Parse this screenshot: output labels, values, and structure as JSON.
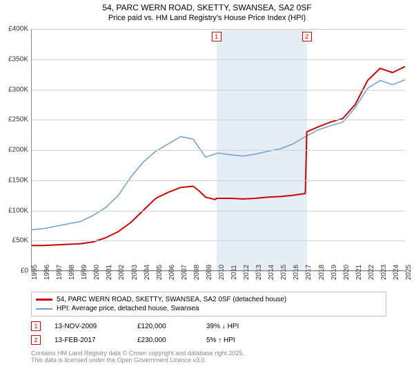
{
  "title_line1": "54, PARC WERN ROAD, SKETTY, SWANSEA, SA2 0SF",
  "title_line2": "Price paid vs. HM Land Registry's House Price Index (HPI)",
  "chart": {
    "type": "line",
    "background_color": "#ffffff",
    "grid_color": "#d0d0d0",
    "shade_color": "#e5eef7",
    "ylim": [
      0,
      400
    ],
    "ytick_step": 50,
    "y_labels": [
      "£0",
      "£50K",
      "£100K",
      "£150K",
      "£200K",
      "£250K",
      "£300K",
      "£350K",
      "£400K"
    ],
    "xlim": [
      1995,
      2025
    ],
    "x_labels": [
      "1995",
      "1996",
      "1997",
      "1998",
      "1999",
      "2000",
      "2001",
      "2002",
      "2003",
      "2004",
      "2005",
      "2006",
      "2007",
      "2008",
      "2009",
      "2010",
      "2011",
      "2012",
      "2013",
      "2014",
      "2015",
      "2016",
      "2017",
      "2018",
      "2019",
      "2020",
      "2021",
      "2022",
      "2023",
      "2024",
      "2025"
    ],
    "label_fontsize": 10,
    "shade_range": [
      2009.87,
      2017.12
    ],
    "series": [
      {
        "name": "red",
        "color": "#cc0000",
        "width": 2,
        "points": [
          [
            1995,
            42
          ],
          [
            1996,
            42
          ],
          [
            1997,
            43
          ],
          [
            1998,
            44
          ],
          [
            1999,
            45
          ],
          [
            2000,
            48
          ],
          [
            2001,
            55
          ],
          [
            2002,
            65
          ],
          [
            2003,
            80
          ],
          [
            2004,
            100
          ],
          [
            2005,
            120
          ],
          [
            2006,
            130
          ],
          [
            2007,
            138
          ],
          [
            2008,
            140
          ],
          [
            2008.5,
            132
          ],
          [
            2009,
            122
          ],
          [
            2009.8,
            118
          ],
          [
            2009.87,
            120
          ],
          [
            2010,
            120
          ],
          [
            2011,
            120
          ],
          [
            2012,
            119
          ],
          [
            2013,
            120
          ],
          [
            2014,
            122
          ],
          [
            2015,
            123
          ],
          [
            2016,
            125
          ],
          [
            2017,
            128
          ],
          [
            2017.12,
            230
          ],
          [
            2018,
            238
          ],
          [
            2019,
            246
          ],
          [
            2020,
            252
          ],
          [
            2021,
            275
          ],
          [
            2022,
            315
          ],
          [
            2023,
            335
          ],
          [
            2024,
            328
          ],
          [
            2025,
            338
          ]
        ]
      },
      {
        "name": "blue",
        "color": "#6699cc",
        "width": 1.4,
        "points": [
          [
            1995,
            68
          ],
          [
            1996,
            70
          ],
          [
            1997,
            74
          ],
          [
            1998,
            78
          ],
          [
            1999,
            82
          ],
          [
            2000,
            92
          ],
          [
            2001,
            105
          ],
          [
            2002,
            125
          ],
          [
            2003,
            155
          ],
          [
            2004,
            180
          ],
          [
            2005,
            198
          ],
          [
            2006,
            210
          ],
          [
            2007,
            222
          ],
          [
            2008,
            218
          ],
          [
            2009,
            188
          ],
          [
            2010,
            195
          ],
          [
            2011,
            192
          ],
          [
            2012,
            190
          ],
          [
            2013,
            193
          ],
          [
            2014,
            198
          ],
          [
            2015,
            202
          ],
          [
            2016,
            210
          ],
          [
            2017,
            222
          ],
          [
            2018,
            233
          ],
          [
            2019,
            240
          ],
          [
            2020,
            246
          ],
          [
            2021,
            270
          ],
          [
            2022,
            302
          ],
          [
            2023,
            315
          ],
          [
            2024,
            308
          ],
          [
            2025,
            316
          ]
        ]
      }
    ],
    "markers": [
      {
        "label": "1",
        "x": 2009.87
      },
      {
        "label": "2",
        "x": 2017.12
      }
    ]
  },
  "legend": {
    "items": [
      {
        "color": "#cc0000",
        "width": 3,
        "label": "54, PARC WERN ROAD, SKETTY, SWANSEA, SA2 0SF (detached house)"
      },
      {
        "color": "#6699cc",
        "width": 2,
        "label": "HPI: Average price, detached house, Swansea"
      }
    ]
  },
  "sales": [
    {
      "num": "1",
      "date": "13-NOV-2009",
      "price": "£120,000",
      "delta": "39% ↓ HPI"
    },
    {
      "num": "2",
      "date": "13-FEB-2017",
      "price": "£230,000",
      "delta": "5% ↑ HPI"
    }
  ],
  "footer_line1": "Contains HM Land Registry data © Crown copyright and database right 2025.",
  "footer_line2": "This data is licensed under the Open Government Licence v3.0."
}
